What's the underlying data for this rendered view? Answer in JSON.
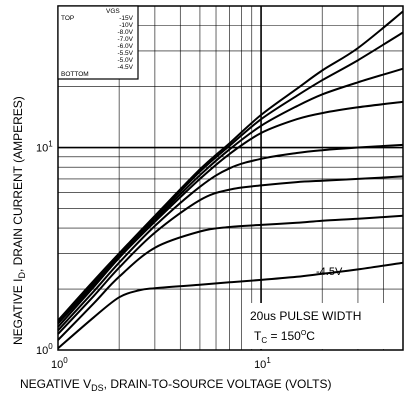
{
  "chart_data": {
    "type": "line",
    "title": "",
    "xlabel_main": "NEGATIVE V",
    "xlabel_sub": "DS",
    "xlabel_rest": ", DRAIN-TO-SOURCE VOLTAGE (VOLTS)",
    "ylabel_main": "NEGATIVE I",
    "ylabel_sub": "D",
    "ylabel_rest": ", DRAIN CURRENT (AMPERES)",
    "x_scale": "log",
    "y_scale": "log",
    "xlim": [
      1,
      50
    ],
    "ylim": [
      1,
      50
    ],
    "grid": true,
    "x_tick_labels": [
      {
        "base": "10",
        "exp": "0",
        "value": 1
      },
      {
        "base": "10",
        "exp": "1",
        "value": 10
      }
    ],
    "y_tick_labels": [
      {
        "base": "10",
        "exp": "0",
        "value": 1
      },
      {
        "base": "10",
        "exp": "1",
        "value": 10
      }
    ],
    "legend": {
      "placement": "top-left",
      "header": "VGS",
      "top_label": "TOP",
      "bottom_label": "BOTTOM",
      "entries": [
        "-15V",
        "-10V",
        "-8.0V",
        "-7.0V",
        "-6.0V",
        "-5.5V",
        "-5.0V",
        "-4.5V"
      ]
    },
    "annotations": {
      "curve_label": "-4.5V",
      "pulse": "20us PULSE WIDTH",
      "temp_prefix": "T",
      "temp_sub": "C",
      "temp_value": " = 150",
      "temp_sup": "O",
      "temp_unit": "C"
    },
    "series": [
      {
        "values": [
          [
            1,
            1.4
          ],
          [
            1.5,
            2.2
          ],
          [
            2,
            3.0
          ],
          [
            3,
            4.6
          ],
          [
            5,
            7.8
          ],
          [
            7,
            10.5
          ],
          [
            10,
            14.5
          ],
          [
            15,
            19.5
          ],
          [
            20,
            24.0
          ],
          [
            30,
            31.0
          ],
          [
            50,
            47.0
          ]
        ]
      },
      {
        "values": [
          [
            1,
            1.38
          ],
          [
            1.5,
            2.15
          ],
          [
            2,
            2.95
          ],
          [
            3,
            4.5
          ],
          [
            5,
            7.6
          ],
          [
            7,
            10.2
          ],
          [
            10,
            13.8
          ],
          [
            15,
            18.0
          ],
          [
            20,
            21.5
          ],
          [
            30,
            27.0
          ],
          [
            50,
            37.0
          ]
        ]
      },
      {
        "values": [
          [
            1,
            1.35
          ],
          [
            1.5,
            2.1
          ],
          [
            2,
            2.9
          ],
          [
            3,
            4.4
          ],
          [
            5,
            7.3
          ],
          [
            7,
            9.8
          ],
          [
            10,
            12.8
          ],
          [
            15,
            16.0
          ],
          [
            20,
            18.3
          ],
          [
            30,
            21.0
          ],
          [
            50,
            24.5
          ]
        ]
      },
      {
        "values": [
          [
            1,
            1.3
          ],
          [
            1.5,
            2.05
          ],
          [
            2,
            2.85
          ],
          [
            3,
            4.3
          ],
          [
            5,
            7.0
          ],
          [
            7,
            9.3
          ],
          [
            10,
            11.8
          ],
          [
            15,
            13.8
          ],
          [
            20,
            14.8
          ],
          [
            30,
            15.8
          ],
          [
            50,
            16.8
          ]
        ]
      },
      {
        "values": [
          [
            1,
            1.25
          ],
          [
            1.5,
            1.95
          ],
          [
            2,
            2.7
          ],
          [
            3,
            4.1
          ],
          [
            5,
            6.4
          ],
          [
            7,
            7.9
          ],
          [
            10,
            8.8
          ],
          [
            15,
            9.4
          ],
          [
            20,
            9.7
          ],
          [
            30,
            10.0
          ],
          [
            50,
            10.3
          ]
        ]
      },
      {
        "values": [
          [
            1,
            1.2
          ],
          [
            1.5,
            1.85
          ],
          [
            2,
            2.55
          ],
          [
            3,
            3.8
          ],
          [
            5,
            5.5
          ],
          [
            7,
            6.2
          ],
          [
            10,
            6.5
          ],
          [
            15,
            6.75
          ],
          [
            20,
            6.85
          ],
          [
            30,
            7.0
          ],
          [
            50,
            7.2
          ]
        ]
      },
      {
        "values": [
          [
            1,
            1.12
          ],
          [
            1.5,
            1.7
          ],
          [
            2,
            2.3
          ],
          [
            3,
            3.2
          ],
          [
            5,
            3.85
          ],
          [
            7,
            4.05
          ],
          [
            10,
            4.15
          ],
          [
            15,
            4.25
          ],
          [
            20,
            4.35
          ],
          [
            30,
            4.45
          ],
          [
            50,
            4.6
          ]
        ]
      },
      {
        "values": [
          [
            1,
            1.02
          ],
          [
            1.5,
            1.45
          ],
          [
            2,
            1.82
          ],
          [
            2.5,
            1.97
          ],
          [
            3,
            2.02
          ],
          [
            5,
            2.1
          ],
          [
            7,
            2.16
          ],
          [
            10,
            2.22
          ],
          [
            15,
            2.3
          ],
          [
            20,
            2.38
          ],
          [
            30,
            2.5
          ],
          [
            50,
            2.7
          ]
        ]
      }
    ]
  }
}
